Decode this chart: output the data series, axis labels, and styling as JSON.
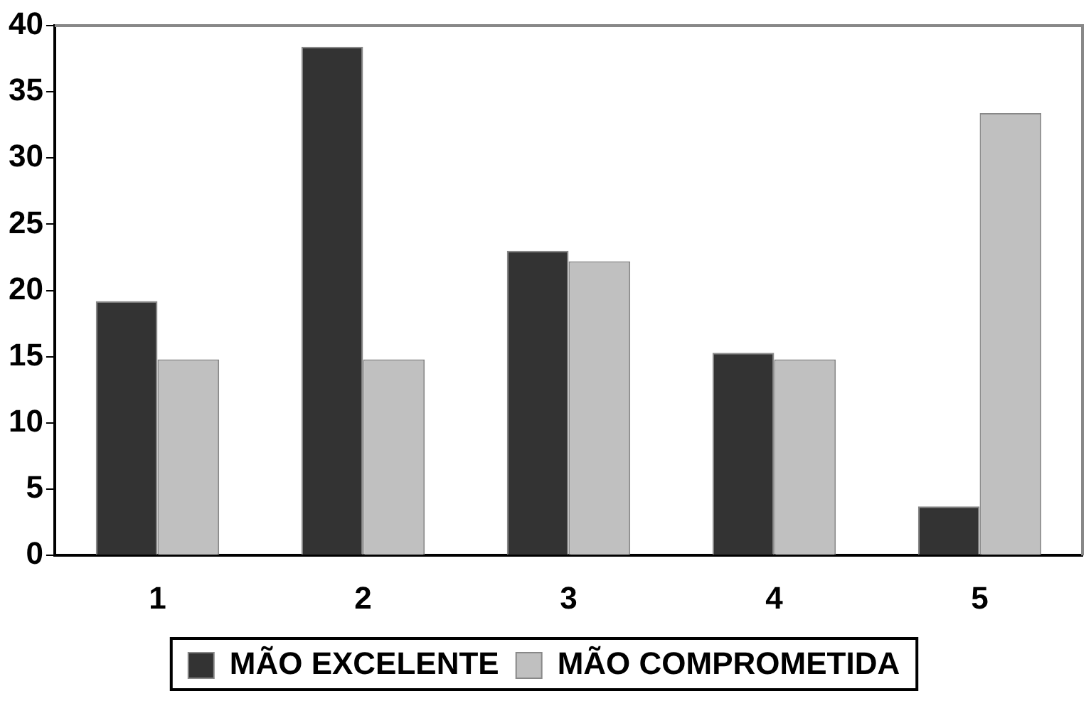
{
  "chart_data": {
    "type": "bar",
    "categories": [
      "1",
      "2",
      "3",
      "4",
      "5"
    ],
    "series": [
      {
        "name": "MÃO EXCELENTE",
        "color": "#333333",
        "values": [
          19.2,
          38.4,
          23,
          15.3,
          3.7
        ]
      },
      {
        "name": "MÃO COMPROMETIDA",
        "color": "#c0c0c0",
        "values": [
          14.8,
          14.8,
          22.2,
          14.8,
          33.4
        ]
      }
    ],
    "ylim": [
      0,
      40
    ],
    "yticks": [
      0,
      5,
      10,
      15,
      20,
      25,
      30,
      35,
      40
    ],
    "grid": false,
    "legend": "bottom"
  }
}
